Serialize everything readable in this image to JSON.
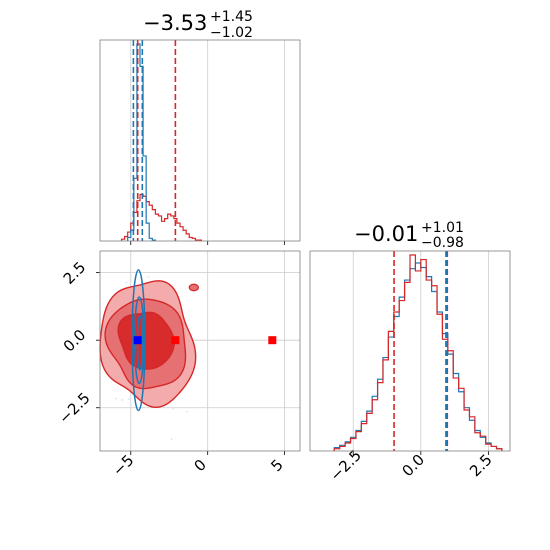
{
  "colors": {
    "red": "#d62728",
    "blue": "#1f77b4",
    "red_fill_light": "#f2a7a8",
    "red_fill_mid": "#e56e70",
    "red_fill_dark": "#d62728",
    "grid": "#cccccc",
    "marker_blue": "#0000ff",
    "marker_red": "#ff0000"
  },
  "chart_data": [
    {
      "type": "histogram",
      "panel": "top-left",
      "title": {
        "value": "−3.53",
        "sup": "+1.45",
        "sub": "−1.02"
      },
      "xlim": [
        -7,
        6
      ],
      "xticks": [
        -5,
        0,
        5
      ],
      "grid": true,
      "series": [
        {
          "color": "blue",
          "bin_edges": [
            -5.2,
            -5.0,
            -4.8,
            -4.6,
            -4.4,
            -4.2,
            -4.0,
            -3.8,
            -3.6,
            -3.4
          ],
          "counts": [
            4,
            12,
            70,
            220,
            195,
            95,
            20,
            3,
            1
          ]
        },
        {
          "color": "red",
          "bin_edges": [
            -5.6,
            -5.4,
            -5.2,
            -5.0,
            -4.8,
            -4.6,
            -4.4,
            -4.2,
            -4.0,
            -3.8,
            -3.6,
            -3.4,
            -3.2,
            -3.0,
            -2.8,
            -2.6,
            -2.4,
            -2.2,
            -2.0,
            -1.8,
            -1.6,
            -1.4,
            -1.2,
            -1.0,
            -0.8,
            -0.6,
            -0.4
          ],
          "counts": [
            2,
            5,
            10,
            20,
            32,
            45,
            52,
            50,
            44,
            40,
            35,
            30,
            28,
            22,
            25,
            30,
            28,
            25,
            20,
            16,
            12,
            8,
            4,
            3,
            1,
            1
          ]
        }
      ],
      "vlines": [
        {
          "x": -4.83,
          "color": "blue"
        },
        {
          "x": -4.25,
          "color": "blue"
        },
        {
          "x": -4.55,
          "color": "red"
        },
        {
          "x": -2.1,
          "color": "red"
        }
      ]
    },
    {
      "type": "histogram",
      "panel": "bottom-right",
      "title": {
        "value": "−0.01",
        "sup": "+1.01",
        "sub": "−0.98"
      },
      "xlim": [
        -4.1,
        3.3
      ],
      "xticks": [
        -2.5,
        0.0,
        2.5
      ],
      "xtick_labels": [
        "−2.5",
        "0.0",
        "2.5"
      ],
      "grid": true,
      "bin_edges": [
        -3.2,
        -3.0,
        -2.8,
        -2.6,
        -2.4,
        -2.2,
        -2.0,
        -1.8,
        -1.6,
        -1.4,
        -1.2,
        -1.0,
        -0.8,
        -0.6,
        -0.4,
        -0.2,
        0.0,
        0.2,
        0.4,
        0.6,
        0.8,
        1.0,
        1.2,
        1.4,
        1.6,
        1.8,
        2.0,
        2.2,
        2.4,
        2.6,
        2.8,
        3.0
      ],
      "series": [
        {
          "color": "blue",
          "counts": [
            3,
            5,
            8,
            12,
            18,
            26,
            35,
            48,
            63,
            82,
            100,
            118,
            135,
            150,
            160,
            165,
            161,
            153,
            140,
            122,
            103,
            85,
            68,
            52,
            38,
            27,
            18,
            12,
            7,
            4,
            2
          ]
        },
        {
          "color": "red",
          "counts": [
            2,
            4,
            7,
            11,
            17,
            24,
            33,
            45,
            60,
            80,
            105,
            122,
            132,
            148,
            172,
            158,
            168,
            150,
            145,
            120,
            98,
            88,
            64,
            55,
            36,
            30,
            16,
            13,
            6,
            4,
            2
          ]
        }
      ],
      "vlines": [
        {
          "x": -0.99,
          "color": "red"
        },
        {
          "x": 0.98,
          "color": "red"
        },
        {
          "x": 0.93,
          "color": "blue"
        },
        {
          "x": 0.96,
          "color": "blue"
        }
      ]
    },
    {
      "type": "contour",
      "panel": "bottom-left",
      "xlim": [
        -7,
        6
      ],
      "ylim": [
        -4.1,
        3.3
      ],
      "xticks": [
        -5,
        0,
        5
      ],
      "yticks": [
        -2.5,
        0.0,
        2.5
      ],
      "ytick_labels": [
        "−2.5",
        "0.0",
        "2.5"
      ],
      "xtick_labels": [
        "−5",
        "0",
        "5"
      ],
      "grid": true,
      "red_contours": [
        {
          "level": "outer",
          "cx": -3.9,
          "cy": -0.1,
          "rx": 3.0,
          "ry": 2.3,
          "wobble": 0.12,
          "seed": 1
        },
        {
          "level": "middle",
          "cx": -3.9,
          "cy": -0.1,
          "rx": 2.5,
          "ry": 1.7,
          "wobble": 0.12,
          "seed": 2
        },
        {
          "level": "inner",
          "cx": -4.0,
          "cy": 0.0,
          "rx": 1.7,
          "ry": 1.1,
          "wobble": 0.14,
          "seed": 3
        }
      ],
      "red_blob": {
        "cx": -0.9,
        "cy": 1.95,
        "rx": 0.3,
        "ry": 0.12
      },
      "blue_contours": [
        {
          "cx": -4.5,
          "cy": 0.0,
          "rx": 0.42,
          "ry": 2.6
        },
        {
          "cx": -4.45,
          "cy": 0.0,
          "rx": 0.3,
          "ry": 1.6
        },
        {
          "cx": -4.4,
          "cy": -0.1,
          "rx": 0.17,
          "ry": 1.0
        }
      ],
      "markers": [
        {
          "x": -4.55,
          "y": 0.0,
          "color": "marker_blue"
        },
        {
          "x": -2.1,
          "y": 0.0,
          "color": "marker_red"
        },
        {
          "x": 4.2,
          "y": 0.0,
          "color": "marker_red"
        }
      ]
    }
  ]
}
